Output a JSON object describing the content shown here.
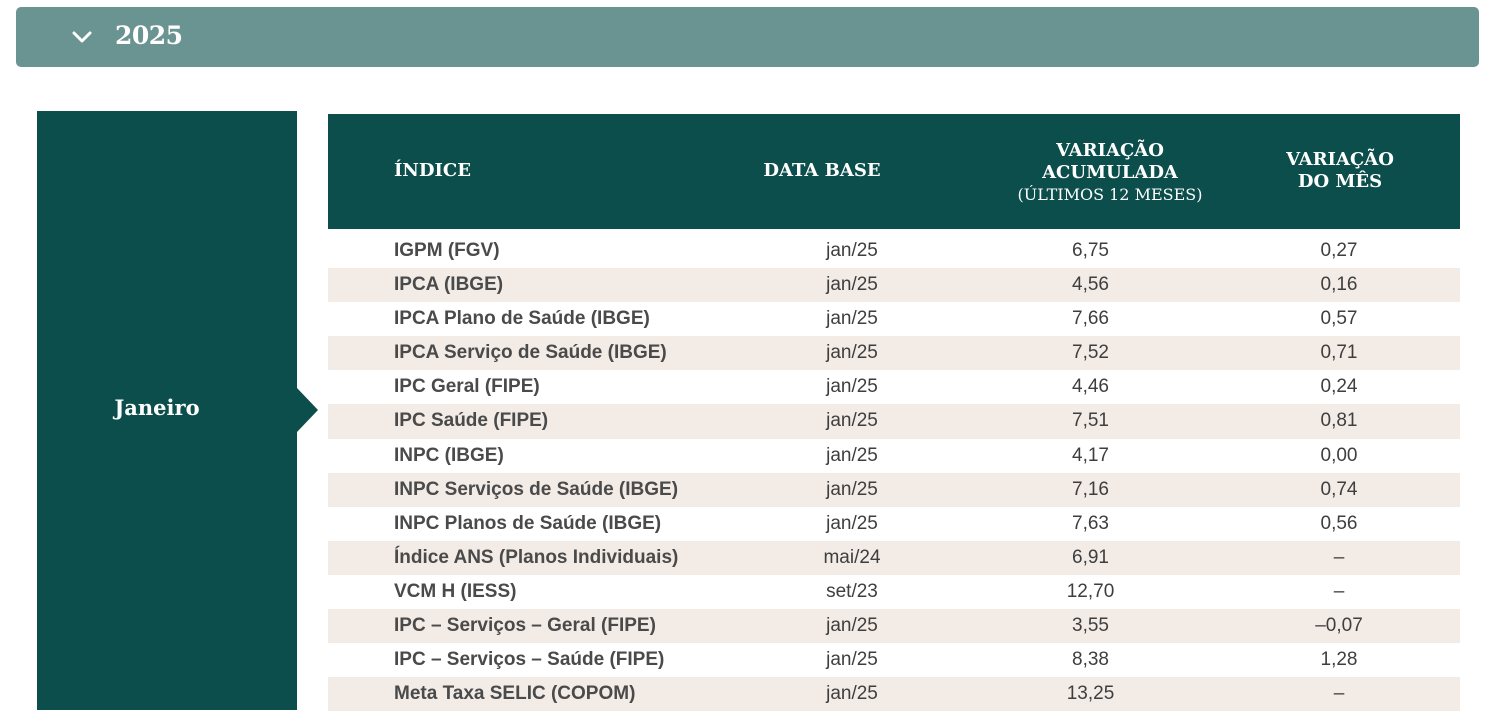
{
  "accordion": {
    "year": "2025",
    "month": "Janeiro",
    "icon": "chevron-down-icon"
  },
  "table": {
    "headers": {
      "indice": "ÍNDICE",
      "data_base": "DATA BASE",
      "acum_line1": "VARIAÇÃO",
      "acum_line2": "ACUMULADA",
      "acum_sub": "(ÚLTIMOS 12 MESES)",
      "mes_line1": "VARIAÇÃO",
      "mes_line2": "DO MÊS"
    },
    "rows": [
      {
        "name": "IGPM (FGV)",
        "date": "jan/25",
        "acum": "6,75",
        "mes": "0,27"
      },
      {
        "name": "IPCA (IBGE)",
        "date": "jan/25",
        "acum": "4,56",
        "mes": "0,16"
      },
      {
        "name": "IPCA Plano de Saúde (IBGE)",
        "date": "jan/25",
        "acum": "7,66",
        "mes": "0,57"
      },
      {
        "name": "IPCA Serviço de Saúde (IBGE)",
        "date": "jan/25",
        "acum": "7,52",
        "mes": "0,71"
      },
      {
        "name": "IPC Geral (FIPE)",
        "date": "jan/25",
        "acum": "4,46",
        "mes": "0,24"
      },
      {
        "name": "IPC Saúde (FIPE)",
        "date": "jan/25",
        "acum": "7,51",
        "mes": "0,81"
      },
      {
        "name": "INPC (IBGE)",
        "date": "jan/25",
        "acum": "4,17",
        "mes": "0,00"
      },
      {
        "name": "INPC Serviços de Saúde (IBGE)",
        "date": "jan/25",
        "acum": "7,16",
        "mes": "0,74"
      },
      {
        "name": "INPC Planos de Saúde (IBGE)",
        "date": "jan/25",
        "acum": "7,63",
        "mes": "0,56"
      },
      {
        "name": "Índice ANS (Planos Individuais)",
        "date": "mai/24",
        "acum": "6,91",
        "mes": "–"
      },
      {
        "name": "VCM H (IESS)",
        "date": "set/23",
        "acum": "12,70",
        "mes": "–"
      },
      {
        "name": "IPC – Serviços – Geral (FIPE)",
        "date": "jan/25",
        "acum": "3,55",
        "mes": "–0,07"
      },
      {
        "name": "IPC – Serviços – Saúde (FIPE)",
        "date": "jan/25",
        "acum": "8,38",
        "mes": "1,28"
      },
      {
        "name": "Meta Taxa SELIC (COPOM)",
        "date": "jan/25",
        "acum": "13,25",
        "mes": "–"
      }
    ]
  },
  "colors": {
    "accordion_bg": "#6a9491",
    "dark_green": "#0b4e4b",
    "row_alt": "#f2ebe6",
    "text": "#3e3e3e"
  }
}
